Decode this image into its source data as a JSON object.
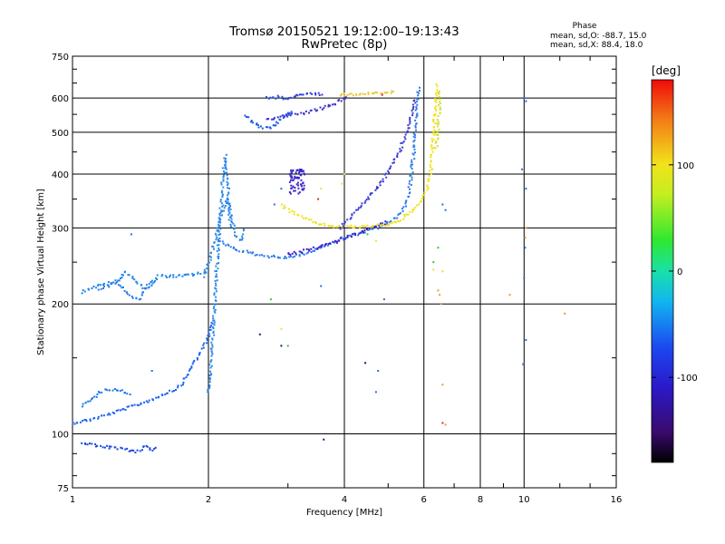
{
  "chart_data": {
    "type": "scatter",
    "title": "Tromsø 20150521 19:12:00–19:13:43",
    "subtitle": "RwPretec (8p)",
    "xlabel": "Frequency [MHz]",
    "ylabel": "Stationary phase Virtual Height [km]",
    "xscale": "log",
    "yscale": "log",
    "xlim": [
      1,
      16
    ],
    "ylim": [
      75,
      750
    ],
    "xticks": [
      1,
      2,
      4,
      6,
      8,
      10,
      16
    ],
    "xtick_labels": [
      "1",
      "2",
      "4",
      "6",
      "8",
      "10",
      "16"
    ],
    "yticks": [
      75,
      100,
      200,
      300,
      400,
      500,
      600,
      750
    ],
    "ytick_labels": [
      "75",
      "100",
      "200",
      "300",
      "400",
      "500",
      "600",
      "750"
    ],
    "grid": true,
    "info": {
      "heading": "Phase",
      "line1": "mean, sd,O: -88.7, 15.0",
      "line2": "mean, sd,X: 88.4, 18.0"
    },
    "colorbar": {
      "label": "[deg]",
      "range": [
        -180,
        180
      ],
      "ticks": [
        100,
        0,
        -100
      ],
      "tick_labels": [
        "100",
        "0",
        "-100"
      ]
    },
    "series": [
      {
        "kind": "trace",
        "color": "#1c63f0",
        "points": [
          [
            1.0,
            106
          ],
          [
            1.1,
            108
          ],
          [
            1.2,
            111
          ],
          [
            1.3,
            114
          ],
          [
            1.4,
            117
          ],
          [
            1.5,
            120
          ],
          [
            1.6,
            124
          ],
          [
            1.7,
            127
          ],
          [
            1.75,
            131
          ],
          [
            1.8,
            138
          ],
          [
            1.85,
            145
          ],
          [
            1.9,
            152
          ],
          [
            1.95,
            158
          ],
          [
            2.0,
            168
          ],
          [
            2.05,
            185
          ]
        ]
      },
      {
        "kind": "trace",
        "color": "#1d77ea",
        "points": [
          [
            1.05,
            116
          ],
          [
            1.1,
            120
          ],
          [
            1.15,
            125
          ],
          [
            1.2,
            127
          ],
          [
            1.25,
            127
          ],
          [
            1.3,
            125
          ],
          [
            1.35,
            124
          ]
        ]
      },
      {
        "kind": "trace",
        "color": "#1d86e6",
        "points": [
          [
            1.05,
            213
          ],
          [
            1.1,
            218
          ],
          [
            1.22,
            224
          ],
          [
            1.28,
            228
          ],
          [
            1.3,
            238
          ],
          [
            1.35,
            232
          ],
          [
            1.4,
            222
          ],
          [
            1.45,
            218
          ],
          [
            1.5,
            222
          ],
          [
            1.55,
            232
          ],
          [
            1.65,
            232
          ],
          [
            1.75,
            232
          ],
          [
            1.85,
            234
          ],
          [
            1.95,
            236
          ],
          [
            2.0,
            238
          ]
        ]
      },
      {
        "kind": "trace",
        "color": "#2a7ae8",
        "points": [
          [
            1.15,
            215
          ],
          [
            1.25,
            225
          ],
          [
            1.35,
            208
          ],
          [
            1.4,
            205
          ],
          [
            1.45,
            216
          ],
          [
            1.5,
            228
          ]
        ]
      },
      {
        "kind": "trace",
        "color": "#2d8ae8",
        "points": [
          [
            2.0,
            125
          ],
          [
            2.02,
            140
          ],
          [
            2.04,
            160
          ],
          [
            2.06,
            190
          ],
          [
            2.08,
            230
          ],
          [
            2.1,
            270
          ],
          [
            2.12,
            310
          ],
          [
            2.14,
            360
          ],
          [
            2.16,
            410
          ],
          [
            2.18,
            440
          ],
          [
            2.2,
            400
          ],
          [
            2.22,
            350
          ],
          [
            2.24,
            300
          ]
        ]
      },
      {
        "kind": "trace",
        "color": "#2f8ae6",
        "points": [
          [
            1.95,
            232
          ],
          [
            2.0,
            245
          ],
          [
            2.05,
            270
          ],
          [
            2.1,
            300
          ],
          [
            2.15,
            330
          ],
          [
            2.2,
            350
          ],
          [
            2.25,
            320
          ],
          [
            2.3,
            290
          ],
          [
            2.35,
            280
          ],
          [
            2.4,
            300
          ]
        ]
      },
      {
        "kind": "trace",
        "color": "#2c7ae8",
        "points": [
          [
            2.1,
            280
          ],
          [
            2.3,
            268
          ],
          [
            2.5,
            262
          ],
          [
            2.7,
            258
          ],
          [
            2.9,
            256
          ],
          [
            3.1,
            258
          ],
          [
            3.3,
            262
          ],
          [
            3.6,
            272
          ],
          [
            4.0,
            285
          ],
          [
            4.5,
            295
          ],
          [
            5.0,
            308
          ],
          [
            5.3,
            322
          ],
          [
            5.5,
            345
          ],
          [
            5.6,
            380
          ],
          [
            5.7,
            450
          ],
          [
            5.75,
            520
          ],
          [
            5.8,
            600
          ],
          [
            5.85,
            640
          ]
        ]
      },
      {
        "kind": "trace",
        "color": "#3c1fc8",
        "points": [
          [
            3.0,
            260
          ],
          [
            3.2,
            264
          ],
          [
            3.5,
            270
          ],
          [
            3.8,
            278
          ],
          [
            4.2,
            290
          ],
          [
            4.6,
            300
          ],
          [
            5.0,
            310
          ]
        ]
      },
      {
        "kind": "trace",
        "color": "#f2e21a",
        "points": [
          [
            2.9,
            340
          ],
          [
            3.0,
            330
          ],
          [
            3.2,
            318
          ],
          [
            3.4,
            310
          ],
          [
            3.6,
            305
          ],
          [
            3.8,
            303
          ],
          [
            4.0,
            302
          ],
          [
            4.3,
            302
          ],
          [
            4.6,
            303
          ],
          [
            5.0,
            306
          ],
          [
            5.3,
            312
          ],
          [
            5.6,
            325
          ],
          [
            5.9,
            345
          ],
          [
            6.1,
            370
          ],
          [
            6.2,
            400
          ],
          [
            6.25,
            440
          ],
          [
            6.3,
            500
          ],
          [
            6.35,
            560
          ],
          [
            6.4,
            620
          ],
          [
            6.42,
            650
          ]
        ]
      },
      {
        "kind": "trace",
        "color": "#1a5be8",
        "points": [
          [
            2.4,
            550
          ],
          [
            2.5,
            530
          ],
          [
            2.6,
            515
          ],
          [
            2.7,
            510
          ],
          [
            2.8,
            518
          ],
          [
            2.9,
            535
          ],
          [
            3.0,
            550
          ],
          [
            3.1,
            560
          ]
        ]
      },
      {
        "kind": "trace",
        "color": "#3a2fd0",
        "points": [
          [
            2.7,
            535
          ],
          [
            2.9,
            545
          ],
          [
            3.1,
            550
          ],
          [
            3.3,
            555
          ],
          [
            3.5,
            565
          ],
          [
            3.7,
            575
          ],
          [
            3.9,
            590
          ],
          [
            4.1,
            602
          ]
        ]
      },
      {
        "kind": "trace",
        "color": "#2f3fd8",
        "points": [
          [
            3.0,
            600
          ],
          [
            3.2,
            610
          ],
          [
            3.4,
            615
          ],
          [
            3.6,
            612
          ]
        ]
      },
      {
        "kind": "trace",
        "color": "#e8c832",
        "points": [
          [
            3.9,
            610
          ],
          [
            4.1,
            612
          ],
          [
            4.4,
            614
          ],
          [
            4.7,
            616
          ],
          [
            5.0,
            618
          ],
          [
            5.2,
            620
          ]
        ]
      },
      {
        "kind": "trace",
        "color": "#3a3ad0",
        "points": [
          [
            3.9,
            300
          ],
          [
            4.4,
            340
          ],
          [
            4.9,
            390
          ],
          [
            5.3,
            450
          ],
          [
            5.6,
            530
          ],
          [
            5.75,
            600
          ]
        ]
      },
      {
        "kind": "trace",
        "color": "#cfe233",
        "points": [
          [
            6.4,
            460
          ],
          [
            6.45,
            520
          ],
          [
            6.5,
            580
          ],
          [
            6.5,
            630
          ]
        ]
      },
      {
        "kind": "trace",
        "color": "#2450e0",
        "points": [
          [
            2.7,
            600
          ],
          [
            2.85,
            603
          ],
          [
            3.0,
            598
          ]
        ]
      },
      {
        "kind": "blob",
        "color": "#3b28c8",
        "cx": 3.15,
        "cy": 385,
        "sx": 0.12,
        "sy": 25,
        "n": 70
      },
      {
        "kind": "trace",
        "color": "#1a48e0",
        "points": [
          [
            1.05,
            95
          ],
          [
            1.2,
            93
          ],
          [
            1.3,
            92
          ],
          [
            1.4,
            91
          ],
          [
            1.45,
            94
          ],
          [
            1.5,
            92
          ],
          [
            1.55,
            93
          ]
        ]
      },
      {
        "kind": "points",
        "color": "#e8e03a",
        "points": [
          [
            2.9,
            175
          ],
          [
            3.95,
            380
          ],
          [
            4.0,
            400
          ],
          [
            3.55,
            370
          ],
          [
            4.7,
            280
          ],
          [
            6.3,
            240
          ],
          [
            6.6,
            238
          ]
        ]
      },
      {
        "kind": "points",
        "color": "#2d6ae0",
        "points": [
          [
            10.0,
            600
          ],
          [
            10.1,
            590
          ],
          [
            9.9,
            410
          ],
          [
            10.1,
            370
          ],
          [
            10.05,
            270
          ],
          [
            10.0,
            230
          ],
          [
            10.1,
            165
          ],
          [
            9.95,
            145
          ],
          [
            6.6,
            340
          ],
          [
            6.7,
            330
          ],
          [
            4.9,
            205
          ],
          [
            4.75,
            140
          ],
          [
            4.7,
            125
          ],
          [
            2.8,
            340
          ],
          [
            2.9,
            370
          ],
          [
            3.55,
            220
          ],
          [
            1.35,
            290
          ],
          [
            1.5,
            140
          ]
        ]
      },
      {
        "kind": "points",
        "color": "#ee9b30",
        "points": [
          [
            10.05,
            285
          ],
          [
            10.1,
            300
          ],
          [
            9.3,
            210
          ],
          [
            12.3,
            190
          ],
          [
            6.7,
            105
          ],
          [
            6.6,
            130
          ],
          [
            6.55,
            200
          ],
          [
            6.5,
            210
          ],
          [
            6.45,
            215
          ]
        ]
      },
      {
        "kind": "points",
        "color": "#33c83c",
        "points": [
          [
            6.45,
            270
          ],
          [
            6.3,
            250
          ],
          [
            2.75,
            205
          ],
          [
            3.0,
            160
          ],
          [
            4.5,
            290
          ]
        ]
      },
      {
        "kind": "points",
        "color": "#e32a1c",
        "points": [
          [
            6.6,
            106
          ],
          [
            4.85,
            610
          ],
          [
            3.5,
            350
          ]
        ]
      },
      {
        "kind": "points",
        "color": "#221a6a",
        "points": [
          [
            4.45,
            146
          ],
          [
            3.6,
            97
          ],
          [
            2.6,
            170
          ],
          [
            2.9,
            160
          ]
        ]
      }
    ]
  }
}
